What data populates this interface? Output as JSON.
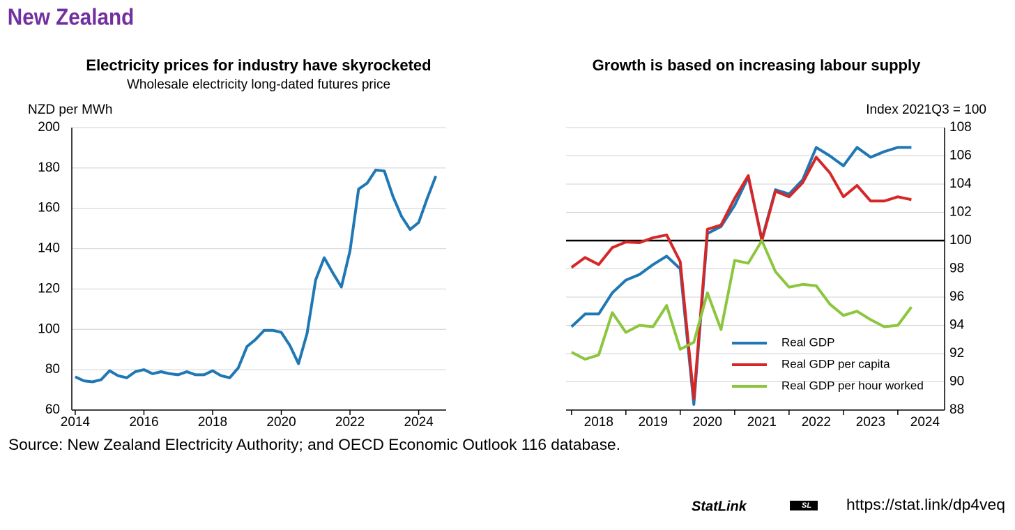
{
  "title": "New Zealand",
  "source": "Source: New Zealand Electricity Authority; and OECD Economic Outlook 116 database.",
  "statlink": {
    "logo": "StatLink",
    "url": "https://stat.link/dp4veq"
  },
  "chart_data": [
    {
      "type": "line",
      "title": "Electricity prices for industry have skyrocketed",
      "subtitle": "Wholesale electricity long-dated futures price",
      "y_label": "NZD per MWh",
      "y_axis_position": "left",
      "x": [
        2014,
        2014.25,
        2014.5,
        2014.75,
        2015,
        2015.25,
        2015.5,
        2015.75,
        2016,
        2016.25,
        2016.5,
        2016.75,
        2017,
        2017.25,
        2017.5,
        2017.75,
        2018,
        2018.25,
        2018.5,
        2018.75,
        2019,
        2019.25,
        2019.5,
        2019.75,
        2020,
        2020.25,
        2020.5,
        2020.75,
        2021,
        2021.25,
        2021.5,
        2021.75,
        2022,
        2022.25,
        2022.5,
        2022.75,
        2023,
        2023.25,
        2023.5,
        2023.75,
        2024,
        2024.25,
        2024.5
      ],
      "series": [
        {
          "name": "Price",
          "color": "#1f77b4",
          "values": [
            76.5,
            74.5,
            74,
            75,
            79.5,
            77,
            76,
            79,
            80,
            78,
            79,
            78,
            77.5,
            79,
            77.5,
            77.5,
            79.5,
            77,
            76,
            81,
            91.5,
            95,
            99.5,
            99.5,
            98.5,
            92,
            83,
            98,
            124.5,
            135.5,
            128,
            121,
            139,
            169.5,
            172.5,
            179,
            178.5,
            166,
            156,
            149.5,
            153,
            165,
            176
          ]
        }
      ],
      "xlim": [
        2013.9,
        2024.8
      ],
      "xticks": [
        2014,
        2016,
        2018,
        2020,
        2022,
        2024
      ],
      "ylim": [
        60,
        200
      ],
      "yticks": [
        60,
        80,
        100,
        120,
        140,
        160,
        180,
        200
      ],
      "grid": true
    },
    {
      "type": "line",
      "title": "Growth is based on increasing labour supply",
      "y_label": "Index 2021Q3 = 100",
      "y_axis_position": "right",
      "reference_line": 100,
      "legend": "lower right",
      "x": [
        2018,
        2018.25,
        2018.5,
        2018.75,
        2019,
        2019.25,
        2019.5,
        2019.75,
        2020,
        2020.25,
        2020.5,
        2020.75,
        2021,
        2021.25,
        2021.5,
        2021.75,
        2022,
        2022.25,
        2022.5,
        2022.75,
        2023,
        2023.25,
        2023.5,
        2023.75,
        2024,
        2024.25
      ],
      "series": [
        {
          "name": "Real GDP",
          "color": "#1f77b4",
          "values": [
            93.9,
            94.8,
            94.8,
            96.3,
            97.2,
            97.6,
            98.3,
            98.9,
            98.0,
            88.4,
            100.5,
            101.0,
            102.5,
            104.5,
            100.1,
            103.6,
            103.3,
            104.3,
            106.6,
            106.0,
            105.3,
            106.6,
            105.9,
            106.3,
            106.6,
            106.6
          ]
        },
        {
          "name": "Real GDP per capita",
          "color": "#d62728",
          "values": [
            98.1,
            98.8,
            98.3,
            99.5,
            99.9,
            99.85,
            100.2,
            100.4,
            98.5,
            88.8,
            100.8,
            101.1,
            103.0,
            104.6,
            100.0,
            103.5,
            103.1,
            104.1,
            105.9,
            104.8,
            103.1,
            103.9,
            102.8,
            102.8,
            103.1,
            102.9
          ]
        },
        {
          "name": "Real GDP per hour worked",
          "color": "#8cc63f",
          "values": [
            92.1,
            91.6,
            91.9,
            94.9,
            93.5,
            94.0,
            93.9,
            95.4,
            92.3,
            92.8,
            96.3,
            93.7,
            98.6,
            98.4,
            100.0,
            97.8,
            96.7,
            96.9,
            96.8,
            95.5,
            94.7,
            95.0,
            94.4,
            93.9,
            94.0,
            95.3
          ]
        }
      ],
      "xlim": [
        2017.9,
        2024.86
      ],
      "xticks": [
        2018,
        2019,
        2020,
        2021,
        2022,
        2023,
        2024
      ],
      "ylim": [
        88,
        108
      ],
      "yticks": [
        88,
        90,
        92,
        94,
        96,
        98,
        100,
        102,
        104,
        106,
        108
      ],
      "grid": true
    }
  ]
}
